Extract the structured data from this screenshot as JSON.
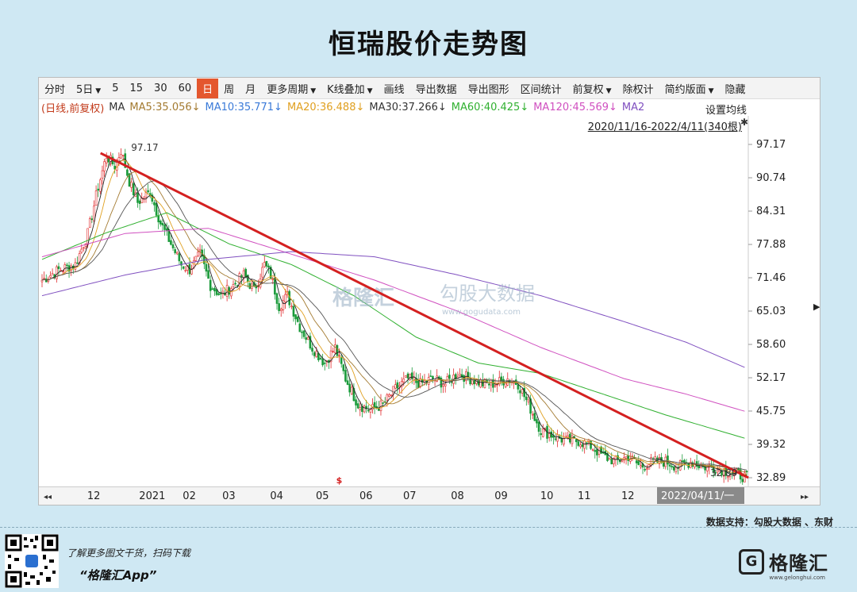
{
  "page": {
    "title": "恒瑞股价走势图"
  },
  "toolbar": {
    "items": [
      "分时",
      "5日",
      "5",
      "15",
      "30",
      "60",
      "日",
      "周",
      "月",
      "更多周期",
      "K线叠加",
      "画线",
      "导出数据",
      "导出图形",
      "区间统计",
      "前复权",
      "除权计",
      "简约版面",
      "隐藏"
    ],
    "active": "日"
  },
  "ma_legend": {
    "prefix": "(日线,前复权)",
    "ma": "MA",
    "ma5": "MA5:35.056↓",
    "ma10": "MA10:35.771↓",
    "ma20": "MA20:36.488↓",
    "ma30": "MA30:37.266↓",
    "ma60": "MA60:40.425↓",
    "ma120": "MA120:45.569↓",
    "ma250": "MA2",
    "settings_label": "设置均线",
    "date_range": "2020/11/16-2022/4/11(340根)"
  },
  "colors": {
    "up": "#e0282a",
    "down": "#1a9a3a",
    "trend": "#d42020",
    "ma5": "#222222",
    "ma10": "#e0a020",
    "ma20": "#a37a30",
    "ma30": "#222222",
    "ma60": "#30b030",
    "ma120": "#d050c0",
    "ma250": "#8050c0",
    "legend_prefix": "#c23a1a"
  },
  "footer": {
    "source": "数据支持：勾股大数据 、东财",
    "scan_text": "了解更多图文干货，扫码下载",
    "app_name": "“格隆汇App”",
    "brand": "格隆汇",
    "brand_url": "www.gelonghui.com",
    "watermark_brand": "格隆汇",
    "watermark_data": "勾股大数据",
    "watermark_url": "www.gogudata.com"
  },
  "chart_data": {
    "type": "candlestick",
    "title": "恒瑞股价走势图",
    "x_range": [
      "2020/11/16",
      "2022/4/11"
    ],
    "bar_count": 340,
    "ylim": [
      32.89,
      97.17
    ],
    "y_ticks": [
      "97.17",
      "90.74",
      "84.31",
      "77.88",
      "71.46",
      "65.03",
      "58.60",
      "52.17",
      "45.75",
      "39.32",
      "32.89"
    ],
    "x_ticks": [
      "12",
      "2021",
      "02",
      "03",
      "04",
      "05",
      "06",
      "07",
      "08",
      "09",
      "10",
      "11",
      "12",
      "2022"
    ],
    "cursor_label": "2022/04/11/一",
    "annotations": [
      {
        "label": "97.17",
        "x": "2021/01",
        "y": 97.17
      },
      {
        "label": "32.89",
        "x": "2022/04",
        "y": 32.89
      }
    ],
    "trendline": {
      "from": [
        "2020/12/28",
        95.5
      ],
      "to": [
        "2022/04/11",
        32.9
      ]
    },
    "price_path": [
      [
        0,
        71
      ],
      [
        8,
        73
      ],
      [
        16,
        74
      ],
      [
        22,
        80
      ],
      [
        27,
        89
      ],
      [
        31,
        95
      ],
      [
        35,
        93
      ],
      [
        38,
        96
      ],
      [
        42,
        90
      ],
      [
        46,
        86
      ],
      [
        52,
        88
      ],
      [
        57,
        82
      ],
      [
        62,
        78
      ],
      [
        67,
        74
      ],
      [
        71,
        73
      ],
      [
        76,
        76
      ],
      [
        81,
        70
      ],
      [
        86,
        68
      ],
      [
        92,
        70
      ],
      [
        97,
        72
      ],
      [
        102,
        69
      ],
      [
        107,
        74
      ],
      [
        110,
        72
      ],
      [
        114,
        66
      ],
      [
        118,
        68
      ],
      [
        124,
        62
      ],
      [
        130,
        58
      ],
      [
        136,
        55
      ],
      [
        141,
        58
      ],
      [
        146,
        52
      ],
      [
        152,
        47
      ],
      [
        158,
        46
      ],
      [
        164,
        47
      ],
      [
        170,
        50
      ],
      [
        176,
        52
      ],
      [
        182,
        51
      ],
      [
        188,
        52
      ],
      [
        194,
        51
      ],
      [
        200,
        53
      ],
      [
        206,
        52
      ],
      [
        212,
        51
      ],
      [
        218,
        51
      ],
      [
        224,
        52
      ],
      [
        229,
        51
      ],
      [
        234,
        47
      ],
      [
        240,
        42
      ],
      [
        246,
        41
      ],
      [
        252,
        40
      ],
      [
        258,
        40
      ],
      [
        264,
        39
      ],
      [
        270,
        37
      ],
      [
        276,
        36
      ],
      [
        282,
        37
      ],
      [
        288,
        35
      ],
      [
        294,
        36
      ],
      [
        300,
        36
      ],
      [
        306,
        35
      ],
      [
        312,
        36
      ],
      [
        318,
        35
      ],
      [
        324,
        35
      ],
      [
        330,
        34
      ],
      [
        335,
        33.5
      ],
      [
        339,
        32.9
      ]
    ],
    "ma_paths": {
      "ma60": [
        [
          0,
          75
        ],
        [
          30,
          80
        ],
        [
          60,
          84
        ],
        [
          90,
          78
        ],
        [
          120,
          74
        ],
        [
          150,
          68
        ],
        [
          180,
          60
        ],
        [
          210,
          55
        ],
        [
          240,
          53
        ],
        [
          270,
          49
        ],
        [
          300,
          45
        ],
        [
          339,
          40.4
        ]
      ],
      "ma120": [
        [
          0,
          75.5
        ],
        [
          40,
          80
        ],
        [
          80,
          81
        ],
        [
          120,
          76
        ],
        [
          160,
          71
        ],
        [
          200,
          65
        ],
        [
          240,
          58
        ],
        [
          280,
          52
        ],
        [
          310,
          49
        ],
        [
          339,
          45.6
        ]
      ],
      "ma250": [
        [
          0,
          68
        ],
        [
          40,
          72
        ],
        [
          80,
          75
        ],
        [
          120,
          76.5
        ],
        [
          160,
          75.5
        ],
        [
          200,
          72
        ],
        [
          240,
          68
        ],
        [
          280,
          63
        ],
        [
          310,
          59
        ],
        [
          339,
          54
        ]
      ]
    },
    "final_ma": {
      "MA5": 35.056,
      "MA10": 35.771,
      "MA20": 36.488,
      "MA30": 37.266,
      "MA60": 40.425,
      "MA120": 45.569
    }
  }
}
